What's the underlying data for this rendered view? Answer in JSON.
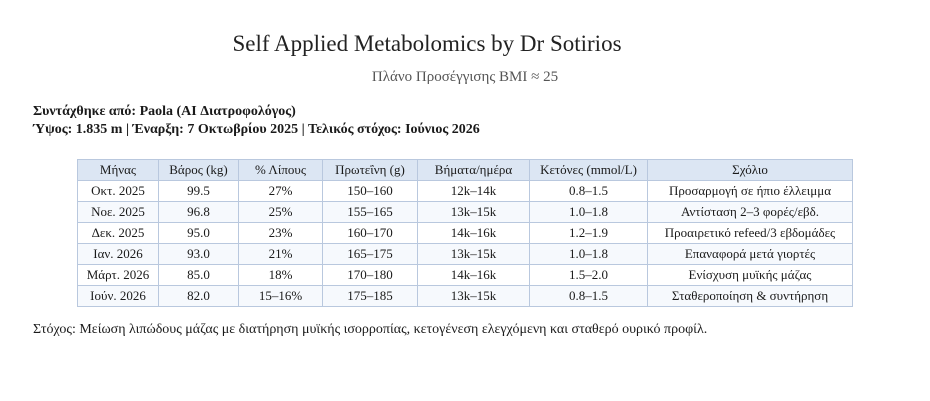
{
  "header": {
    "title": "Self Applied Metabolomics by Dr Sotirios",
    "subtitle": "Πλάνο Προσέγγισης BMI ≈ 25"
  },
  "meta": {
    "author_line": "Συντάχθηκε από: Paola (AI Διατροφολόγος)",
    "stats_line": "Ύψος: 1.835 m | Έναρξη: 7 Οκτωβρίου 2025 | Τελικός στόχος: Ιούνιος 2026"
  },
  "table": {
    "columns": [
      "Μήνας",
      "Βάρος (kg)",
      "% Λίπους",
      "Πρωτεΐνη (g)",
      "Βήματα/ημέρα",
      "Κετόνες (mmol/L)",
      "Σχόλιο"
    ],
    "rows": [
      [
        "Οκτ. 2025",
        "99.5",
        "27%",
        "150–160",
        "12k–14k",
        "0.8–1.5",
        "Προσαρμογή σε ήπιο έλλειμμα"
      ],
      [
        "Νοε. 2025",
        "96.8",
        "25%",
        "155–165",
        "13k–15k",
        "1.0–1.8",
        "Αντίσταση 2–3 φορές/εβδ."
      ],
      [
        "Δεκ. 2025",
        "95.0",
        "23%",
        "160–170",
        "14k–16k",
        "1.2–1.9",
        "Προαιρετικό refeed/3 εβδομάδες"
      ],
      [
        "Ιαν. 2026",
        "93.0",
        "21%",
        "165–175",
        "13k–15k",
        "1.0–1.8",
        "Επαναφορά μετά γιορτές"
      ],
      [
        "Μάρτ. 2026",
        "85.0",
        "18%",
        "170–180",
        "14k–16k",
        "1.5–2.0",
        "Ενίσχυση μυϊκής μάζας"
      ],
      [
        "Ιούν. 2026",
        "82.0",
        "15–16%",
        "175–185",
        "13k–15k",
        "0.8–1.5",
        "Σταθεροποίηση & συντήρηση"
      ]
    ]
  },
  "footer": {
    "goal": "Στόχος: Μείωση λιπώδους μάζας με διατήρηση μυϊκής ισορροπίας, κετογένεση ελεγχόμενη και σταθερό ουρικό προφίλ."
  },
  "colors": {
    "table_header_bg": "#dce6f3",
    "table_border": "#b9c8de",
    "zebra_row_bg": "#f6f9fd",
    "subtitle_text": "#555555",
    "body_text": "#1a1a1a"
  }
}
